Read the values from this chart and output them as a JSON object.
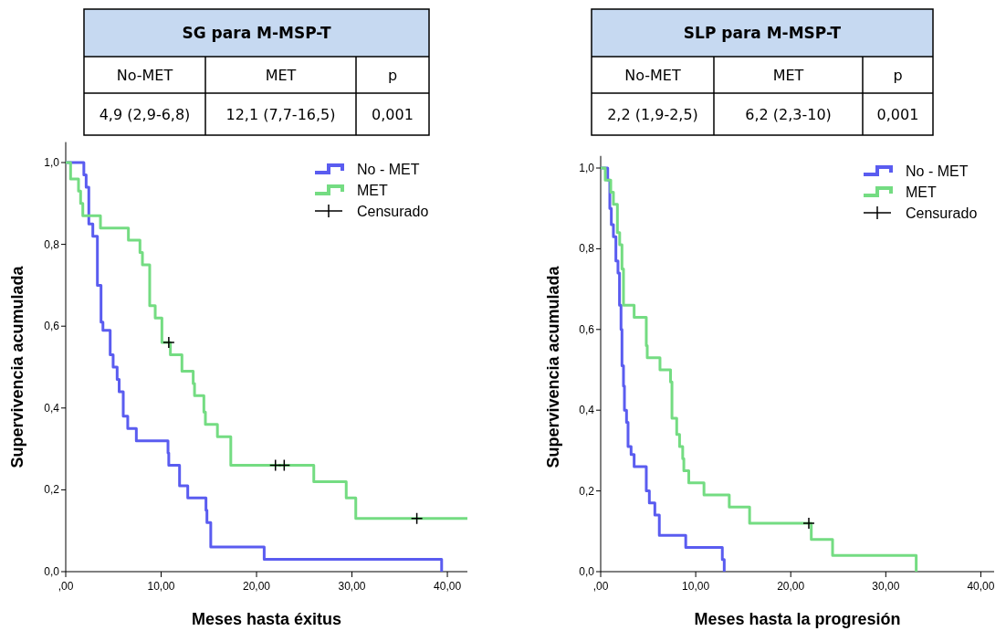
{
  "chart_data": [
    {
      "type": "step",
      "title": "SG para M-MSP-T",
      "annotations": [
        "No-MET",
        "MET",
        "p",
        "4,9 (2,9-6,8)",
        "12,1 (7,7-16,5)",
        "0,001"
      ],
      "xlabel": "Meses hasta éxitus",
      "ylabel": "Supervivencia acumulada",
      "xlim": [
        0,
        42.1
      ],
      "ylim": [
        0,
        1.05
      ],
      "xticks": [
        {
          "value": 0,
          "label": ",00"
        },
        {
          "value": 10,
          "label": "10,00"
        },
        {
          "value": 20,
          "label": "20,00"
        },
        {
          "value": 30,
          "label": "30,00"
        },
        {
          "value": 40,
          "label": "40,00"
        }
      ],
      "yticks": [
        {
          "value": 0,
          "label": "0,0"
        },
        {
          "value": 0.2,
          "label": "0,2"
        },
        {
          "value": 0.4,
          "label": "0,4"
        },
        {
          "value": 0.6,
          "label": "0,6"
        },
        {
          "value": 0.8,
          "label": "0,8"
        },
        {
          "value": 1,
          "label": "1,0"
        }
      ],
      "grid": false,
      "legend": "top right",
      "series": [
        {
          "name": "No - MET",
          "color": "#5a5cf0",
          "x": [
            0,
            1.9,
            2.14,
            2.42,
            2.84,
            3.32,
            3.7,
            3.9,
            4.66,
            4.97,
            5.39,
            5.6,
            6.03,
            6.5,
            7.4,
            10.72,
            10.8,
            11.93,
            12.79,
            14.7,
            14.8,
            15.2,
            20.8,
            39.4
          ],
          "values": [
            1,
            0.97,
            0.94,
            0.85,
            0.82,
            0.7,
            0.61,
            0.59,
            0.53,
            0.5,
            0.47,
            0.44,
            0.38,
            0.35,
            0.32,
            0.29,
            0.26,
            0.21,
            0.18,
            0.15,
            0.12,
            0.06,
            0.03,
            0
          ]
        },
        {
          "name": "MET",
          "color": "#74dc82",
          "x": [
            0,
            0.51,
            1.34,
            1.56,
            1.79,
            3.64,
            6.57,
            7.78,
            8.04,
            8.8,
            9.38,
            10.08,
            10.97,
            12.18,
            13.36,
            13.5,
            14.48,
            14.64,
            15.9,
            17.3,
            26,
            29.4,
            30.4,
            42.1
          ],
          "values": [
            1,
            0.96,
            0.93,
            0.9,
            0.87,
            0.84,
            0.81,
            0.78,
            0.75,
            0.65,
            0.62,
            0.56,
            0.53,
            0.49,
            0.46,
            0.43,
            0.39,
            0.36,
            0.33,
            0.26,
            0.22,
            0.18,
            0.13,
            0.13
          ]
        },
        {
          "name": "Censurado",
          "type": "scatter",
          "color": "#000000",
          "marker": "cross",
          "x": [
            10.8,
            21.98,
            22.9,
            36.8
          ],
          "values": [
            0.56,
            0.26,
            0.26,
            0.13
          ]
        }
      ]
    },
    {
      "type": "step",
      "title": "SLP para M-MSP-T",
      "annotations": [
        "No-MET",
        "MET",
        "p",
        "2,2 (1,9-2,5)",
        "6,2 (2,3-10)",
        "0,001"
      ],
      "xlabel": "Meses hasta la progresión",
      "ylabel": "Supervivencia acumulada",
      "xlim": [
        0,
        41.4
      ],
      "ylim": [
        0,
        1.03
      ],
      "xticks": [
        {
          "value": 0,
          "label": ",00"
        },
        {
          "value": 10,
          "label": "10,00"
        },
        {
          "value": 20,
          "label": "20,00"
        },
        {
          "value": 30,
          "label": "30,00"
        },
        {
          "value": 40,
          "label": "40,00"
        }
      ],
      "yticks": [
        {
          "value": 0,
          "label": "0,0"
        },
        {
          "value": 0.2,
          "label": "0,2"
        },
        {
          "value": 0.4,
          "label": "0,4"
        },
        {
          "value": 0.6,
          "label": "0,6"
        },
        {
          "value": 0.8,
          "label": "0,8"
        },
        {
          "value": 1,
          "label": "1,0"
        }
      ],
      "grid": false,
      "legend": "top right",
      "series": [
        {
          "name": "No - MET",
          "color": "#5a5cf0",
          "x": [
            0,
            0.74,
            0.96,
            1.12,
            1.34,
            1.6,
            1.82,
            1.98,
            2.14,
            2.24,
            2.4,
            2.5,
            2.72,
            2.88,
            3.2,
            3.52,
            4.8,
            5.12,
            5.7,
            6.17,
            8.95,
            12.8,
            13
          ],
          "values": [
            1,
            0.97,
            0.9,
            0.86,
            0.83,
            0.77,
            0.74,
            0.66,
            0.6,
            0.51,
            0.46,
            0.4,
            0.37,
            0.31,
            0.29,
            0.26,
            0.2,
            0.17,
            0.14,
            0.09,
            0.06,
            0.03,
            0
          ]
        },
        {
          "name": "MET",
          "color": "#74dc82",
          "x": [
            0,
            0.48,
            1.06,
            1.34,
            1.76,
            2,
            2.24,
            2.4,
            3.52,
            4.8,
            4.9,
            6.24,
            7.35,
            7.5,
            8,
            8.3,
            8.63,
            8.75,
            9.27,
            10.87,
            13.53,
            15.67,
            22.16,
            24.4,
            33.2
          ],
          "values": [
            1,
            0.97,
            0.94,
            0.91,
            0.84,
            0.81,
            0.75,
            0.66,
            0.63,
            0.56,
            0.53,
            0.5,
            0.47,
            0.38,
            0.34,
            0.31,
            0.28,
            0.25,
            0.22,
            0.19,
            0.16,
            0.12,
            0.08,
            0.04,
            0
          ]
        },
        {
          "name": "Censurado",
          "type": "scatter",
          "color": "#000000",
          "marker": "cross",
          "x": [
            21.9
          ],
          "values": [
            0.12
          ]
        }
      ]
    }
  ]
}
